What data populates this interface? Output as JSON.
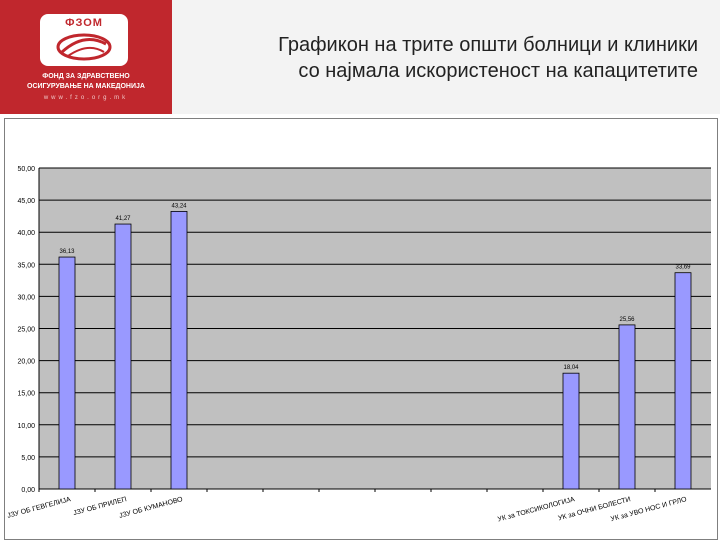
{
  "header": {
    "logo": {
      "title": "ФЗОМ",
      "line1": "ФОНД ЗА ЗДРАВСТВЕНО",
      "line2": "ОСИГУРУВАЊЕ НА МАКЕДОНИЈА",
      "url": "www.fzo.org.mk"
    },
    "title_line1": "Графикон на трите општи болници и клиники",
    "title_line2": "со најмала искористеност на капацитетите"
  },
  "colors": {
    "brand": "#c0272d",
    "plot_area": "#c0c0c0",
    "bar_fill": "#9999ff",
    "bar_stroke": "#000000"
  },
  "chart_data": {
    "type": "bar",
    "title": "",
    "xlabel": "",
    "ylabel": "",
    "ylim": [
      0,
      50
    ],
    "yticks": [
      "0,00",
      "5,00",
      "10,00",
      "15,00",
      "20,00",
      "25,00",
      "30,00",
      "35,00",
      "40,00",
      "45,00",
      "50,00"
    ],
    "grid": true,
    "categories": [
      "ЈЗУ ОБ ГЕВГЕЛИЈА",
      "ЈЗУ ОБ ПРИЛЕП",
      "ЈЗУ ОБ КУМАНОВО",
      "",
      "",
      "",
      "",
      "",
      "",
      "УК за ТОКСИКОЛОГИЈА",
      "УК за ОЧНИ БОЛЕСТИ",
      "УК за УВО НОС И ГРЛО"
    ],
    "values": [
      36.13,
      41.27,
      43.24,
      null,
      null,
      null,
      null,
      null,
      null,
      18.04,
      25.56,
      33.69
    ],
    "data_labels": [
      "36,13",
      "41,27",
      "43,24",
      "",
      "",
      "",
      "",
      "",
      "",
      "18,04",
      "25,56",
      "33,69"
    ]
  }
}
